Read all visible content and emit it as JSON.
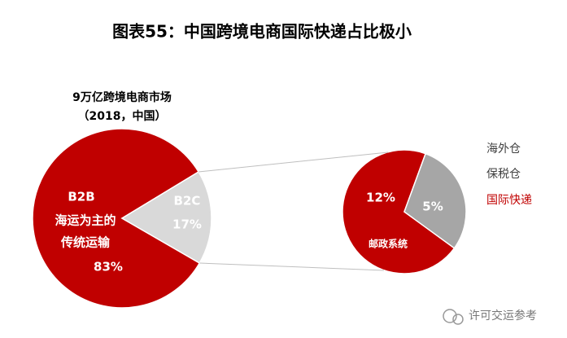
{
  "title": "图表55：中国跨境电商国际快递占比极小",
  "watermark": "许可交运参考",
  "chart_data": [
    {
      "type": "pie",
      "subtitle": [
        "9万亿跨境电商市场",
        "（2018，中国）"
      ],
      "categories": [
        "B2B",
        "B2C"
      ],
      "values": [
        83,
        17
      ],
      "value_labels": [
        "83%",
        "17%"
      ],
      "colors": [
        "#c00000",
        "#d9d9d9"
      ],
      "annotations": [
        "海运为主的",
        "传统运输"
      ]
    },
    {
      "type": "pie",
      "values": [
        12,
        5
      ],
      "value_labels": [
        "12%",
        "5%"
      ],
      "colors": [
        "#c00000",
        "#a6a6a6"
      ],
      "annotations": [
        "邮政系统"
      ],
      "legend": [
        {
          "label": "海外仓",
          "color": "#404040"
        },
        {
          "label": "保税仓",
          "color": "#404040"
        },
        {
          "label": "国际快递",
          "color": "#c00000"
        }
      ]
    }
  ]
}
